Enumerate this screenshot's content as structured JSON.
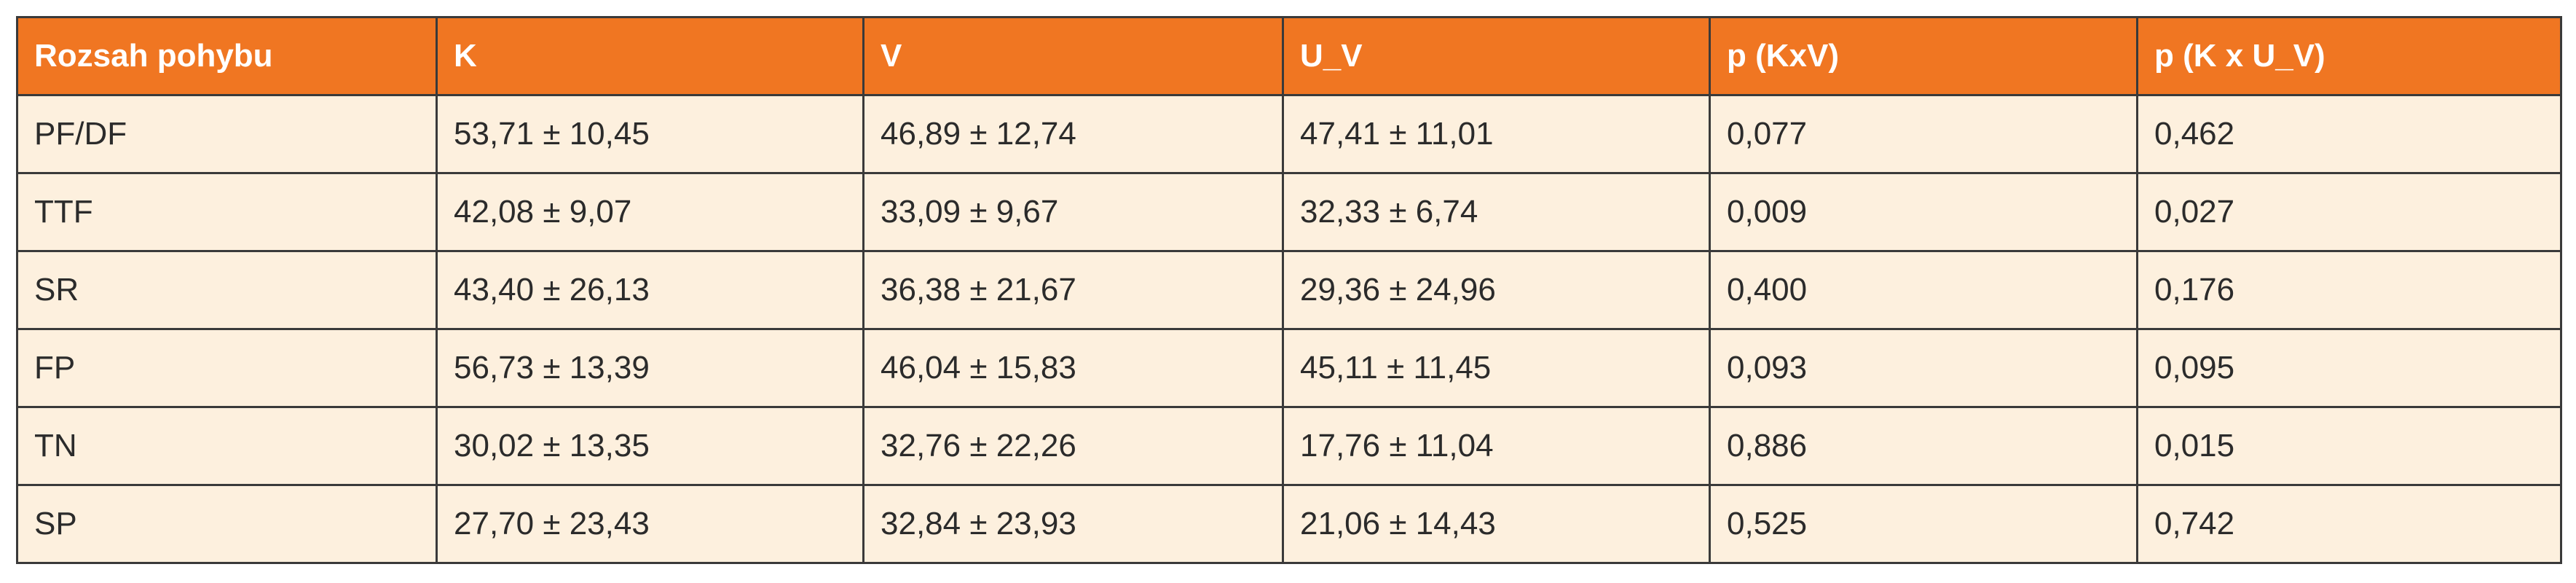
{
  "table": {
    "header": [
      "Rozsah pohybu",
      "K",
      "V",
      "U_V",
      "p (KxV)",
      "p (K x U_V)"
    ],
    "rows": [
      [
        "PF/DF",
        "53,71 ± 10,45",
        "46,89 ± 12,74",
        "47,41 ± 11,01",
        "0,077",
        "0,462"
      ],
      [
        "TTF",
        "42,08 ± 9,07",
        "33,09 ± 9,67",
        "32,33 ± 6,74",
        "0,009",
        "0,027"
      ],
      [
        "SR",
        "43,40 ± 26,13",
        "36,38 ± 21,67",
        "29,36 ± 24,96",
        "0,400",
        "0,176"
      ],
      [
        "FP",
        "56,73 ± 13,39",
        "46,04 ± 15,83",
        "45,11 ± 11,45",
        "0,093",
        "0,095"
      ],
      [
        "TN",
        "30,02 ± 13,35",
        "32,76 ± 22,26",
        "17,76 ± 11,04",
        "0,886",
        "0,015"
      ],
      [
        "SP",
        "27,70 ± 23,43",
        "32,84 ± 23,93",
        "21,06 ± 14,43",
        "0,525",
        "0,742"
      ]
    ]
  }
}
